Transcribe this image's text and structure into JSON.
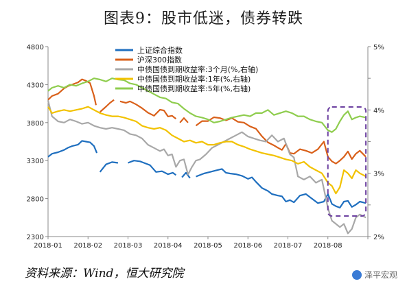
{
  "header": {
    "title": "图表9：股市低迷，债券转跌"
  },
  "footer": {
    "source": "资料来源：Wind，恒大研究院",
    "watermark": "泽平宏观"
  },
  "chart_data": {
    "type": "line",
    "title": "图表9：股市低迷，债券转跌",
    "x": [
      "2018-01",
      "2018-02",
      "2018-03",
      "2018-04",
      "2018-05",
      "2018-06",
      "2018-07",
      "2018-08"
    ],
    "xlim": [
      0,
      8
    ],
    "left_axis": {
      "ticks": [
        2300,
        2800,
        3300,
        3800,
        4300,
        4800
      ],
      "lim": [
        2300,
        4800
      ]
    },
    "right_axis": {
      "ticks": [
        "2%",
        "3%",
        "4%",
        "5%"
      ],
      "lim": [
        2,
        5
      ],
      "extra_ticks": [
        2.5,
        3.5,
        4.5
      ]
    },
    "legend_position": "top-left",
    "grid": false,
    "highlight_box": {
      "x_range": [
        7.0,
        7.95
      ],
      "color": "#6b3fa0",
      "style": "dashed"
    },
    "series": [
      {
        "name": "上证综合指数",
        "axis": "left",
        "color": "#1f6fbf",
        "x": [
          0,
          0.1,
          0.25,
          0.4,
          0.5,
          0.6,
          0.75,
          0.85,
          0.95,
          1.05,
          1.15,
          1.22,
          null,
          1.3,
          1.45,
          1.6,
          1.75,
          null,
          2.0,
          2.15,
          2.3,
          2.4,
          2.55,
          2.7,
          2.85,
          3.0,
          3.12,
          3.2,
          null,
          3.35,
          3.45,
          3.55,
          null,
          3.7,
          3.9,
          4.05,
          4.2,
          4.35,
          4.45,
          4.55,
          4.7,
          4.85,
          5.0,
          5.1,
          5.2,
          5.35,
          5.5,
          5.6,
          5.75,
          5.85,
          5.95,
          6.05,
          6.15,
          6.3,
          6.45,
          6.6,
          6.75,
          6.9,
          7.0,
          7.1,
          7.2,
          7.3,
          7.4,
          7.5,
          7.6,
          7.7,
          7.8,
          7.95
        ],
        "y": [
          3350,
          3390,
          3410,
          3440,
          3470,
          3490,
          3510,
          3560,
          3550,
          3540,
          3490,
          3400,
          null,
          3150,
          3250,
          3280,
          3270,
          null,
          3270,
          3300,
          3290,
          3270,
          3240,
          3150,
          3160,
          3120,
          3140,
          3110,
          null,
          3080,
          3140,
          3070,
          null,
          3090,
          3130,
          3150,
          3170,
          3190,
          3140,
          3130,
          3120,
          3100,
          3060,
          3080,
          3020,
          2940,
          2900,
          2860,
          2840,
          2830,
          2760,
          2780,
          2750,
          2840,
          2860,
          2800,
          2740,
          2760,
          2860,
          2730,
          2700,
          2680,
          2760,
          2770,
          2690,
          2720,
          2760,
          2740
        ]
      },
      {
        "name": "沪深300指数",
        "axis": "left",
        "color": "#d9601a",
        "x": [
          0,
          0.1,
          0.25,
          0.4,
          0.5,
          0.6,
          0.75,
          0.85,
          0.95,
          1.05,
          1.15,
          1.2,
          null,
          1.3,
          1.45,
          1.55,
          1.65,
          null,
          1.8,
          1.95,
          2.05,
          2.2,
          2.35,
          2.5,
          2.65,
          2.8,
          2.9,
          3.0,
          3.1,
          3.2,
          null,
          3.3,
          3.4,
          3.5,
          null,
          3.7,
          3.85,
          4.0,
          4.15,
          4.3,
          4.45,
          4.6,
          4.75,
          4.9,
          5.05,
          5.2,
          5.35,
          5.5,
          5.65,
          5.75,
          5.85,
          5.95,
          6.05,
          6.15,
          6.3,
          6.45,
          6.6,
          6.75,
          6.9,
          7.0,
          7.1,
          7.2,
          7.3,
          7.4,
          7.5,
          7.6,
          7.7,
          7.8,
          7.95
        ],
        "y": [
          4100,
          4150,
          4180,
          4250,
          4280,
          4300,
          4330,
          4370,
          4350,
          4320,
          4150,
          4030,
          null,
          3940,
          4010,
          4060,
          4100,
          null,
          4080,
          4060,
          4080,
          4040,
          3990,
          3930,
          3890,
          3970,
          3960,
          3880,
          3890,
          3850,
          null,
          3800,
          3860,
          3800,
          null,
          3760,
          3820,
          3820,
          3870,
          3860,
          3830,
          3860,
          3810,
          3800,
          3750,
          3720,
          3620,
          3540,
          3500,
          3470,
          3440,
          3520,
          3400,
          3390,
          3450,
          3430,
          3400,
          3450,
          3550,
          3350,
          3290,
          3260,
          3300,
          3350,
          3420,
          3320,
          3390,
          3430,
          3350
        ]
      },
      {
        "name": "中债国债到期收益率:3个月(%,右轴)",
        "axis": "right",
        "color": "#a8a8a8",
        "x": [
          0,
          0.1,
          0.25,
          0.4,
          0.55,
          0.7,
          0.85,
          1.0,
          1.15,
          1.3,
          1.45,
          1.6,
          1.75,
          1.9,
          2.05,
          2.2,
          2.35,
          2.5,
          2.65,
          2.8,
          2.9,
          3.0,
          3.1,
          3.2,
          3.3,
          3.4,
          3.5,
          3.6,
          3.7,
          3.8,
          3.95,
          4.1,
          4.25,
          4.4,
          4.55,
          4.7,
          4.85,
          5.0,
          5.15,
          5.3,
          5.45,
          5.6,
          5.75,
          5.9,
          6.05,
          6.15,
          6.25,
          6.4,
          6.55,
          6.7,
          6.85,
          7.0,
          7.1,
          7.2,
          7.3,
          7.4,
          7.5,
          7.6,
          7.7,
          7.8,
          7.95
        ],
        "y": [
          4.15,
          3.9,
          3.82,
          3.8,
          3.85,
          3.82,
          3.78,
          3.8,
          3.75,
          3.72,
          3.7,
          3.72,
          3.7,
          3.68,
          3.62,
          3.6,
          3.55,
          3.45,
          3.4,
          3.35,
          3.38,
          3.28,
          3.3,
          3.1,
          3.2,
          3.22,
          2.98,
          3.1,
          3.2,
          3.22,
          3.3,
          3.4,
          3.45,
          3.5,
          3.55,
          3.6,
          3.65,
          3.58,
          3.55,
          3.52,
          3.5,
          3.6,
          3.5,
          3.55,
          3.3,
          3.25,
          2.95,
          2.9,
          2.95,
          2.85,
          2.9,
          2.45,
          2.25,
          2.2,
          2.15,
          2.2,
          2.05,
          2.12,
          2.3,
          2.35,
          2.3
        ]
      },
      {
        "name": "中债国债到期收益率:1年(%,右轴)",
        "axis": "right",
        "color": "#f2c200",
        "x": [
          0,
          0.1,
          0.25,
          0.4,
          0.55,
          0.7,
          0.85,
          1.0,
          1.15,
          1.3,
          1.45,
          1.6,
          1.75,
          1.9,
          2.05,
          2.2,
          2.35,
          2.5,
          2.65,
          2.8,
          2.95,
          3.1,
          3.25,
          3.4,
          3.55,
          3.7,
          3.85,
          4.0,
          4.15,
          4.3,
          4.45,
          4.6,
          4.75,
          4.9,
          5.05,
          5.2,
          5.35,
          5.5,
          5.65,
          5.8,
          5.95,
          6.1,
          6.25,
          6.4,
          6.55,
          6.7,
          6.85,
          7.0,
          7.1,
          7.2,
          7.3,
          7.4,
          7.5,
          7.6,
          7.7,
          7.8,
          7.95
        ],
        "y": [
          4.05,
          3.95,
          3.98,
          4.0,
          3.98,
          4.0,
          4.02,
          4.05,
          4.0,
          3.95,
          3.92,
          3.9,
          3.9,
          3.88,
          3.85,
          3.82,
          3.75,
          3.72,
          3.7,
          3.72,
          3.68,
          3.6,
          3.55,
          3.5,
          3.52,
          3.48,
          3.5,
          3.45,
          3.45,
          3.48,
          3.5,
          3.5,
          3.45,
          3.42,
          3.38,
          3.35,
          3.32,
          3.3,
          3.28,
          3.25,
          3.22,
          3.2,
          3.15,
          3.18,
          3.1,
          3.05,
          3.0,
          2.85,
          2.8,
          2.68,
          2.78,
          3.05,
          3.0,
          2.92,
          3.05,
          3.0,
          2.95
        ]
      },
      {
        "name": "中债国债到期收益率:5年(%,右轴)",
        "axis": "right",
        "color": "#8fcd4e",
        "x": [
          0,
          0.1,
          0.25,
          0.4,
          0.55,
          0.7,
          0.85,
          1.0,
          1.15,
          1.3,
          1.45,
          1.6,
          1.75,
          1.9,
          2.05,
          2.2,
          2.35,
          2.5,
          2.65,
          2.8,
          2.95,
          3.1,
          3.25,
          3.4,
          3.55,
          3.7,
          3.85,
          4.0,
          4.15,
          4.3,
          4.45,
          4.6,
          4.75,
          4.9,
          5.05,
          5.2,
          5.35,
          5.5,
          5.65,
          5.8,
          5.95,
          6.1,
          6.25,
          6.4,
          6.55,
          6.7,
          6.85,
          7.0,
          7.1,
          7.2,
          7.3,
          7.4,
          7.5,
          7.6,
          7.7,
          7.8,
          7.95
        ],
        "y": [
          4.3,
          4.35,
          4.38,
          4.35,
          4.4,
          4.38,
          4.42,
          4.45,
          4.5,
          4.48,
          4.45,
          4.5,
          4.48,
          4.47,
          4.42,
          4.4,
          4.35,
          4.3,
          4.25,
          4.2,
          4.18,
          4.12,
          4.1,
          4.02,
          3.95,
          3.9,
          3.88,
          3.85,
          3.8,
          3.82,
          3.85,
          3.88,
          3.9,
          3.92,
          3.9,
          3.95,
          3.95,
          4.0,
          3.92,
          3.95,
          3.98,
          3.95,
          3.9,
          3.9,
          3.85,
          3.82,
          3.8,
          3.68,
          3.65,
          3.7,
          3.82,
          3.92,
          3.98,
          3.85,
          3.88,
          3.9,
          3.88
        ]
      }
    ]
  }
}
